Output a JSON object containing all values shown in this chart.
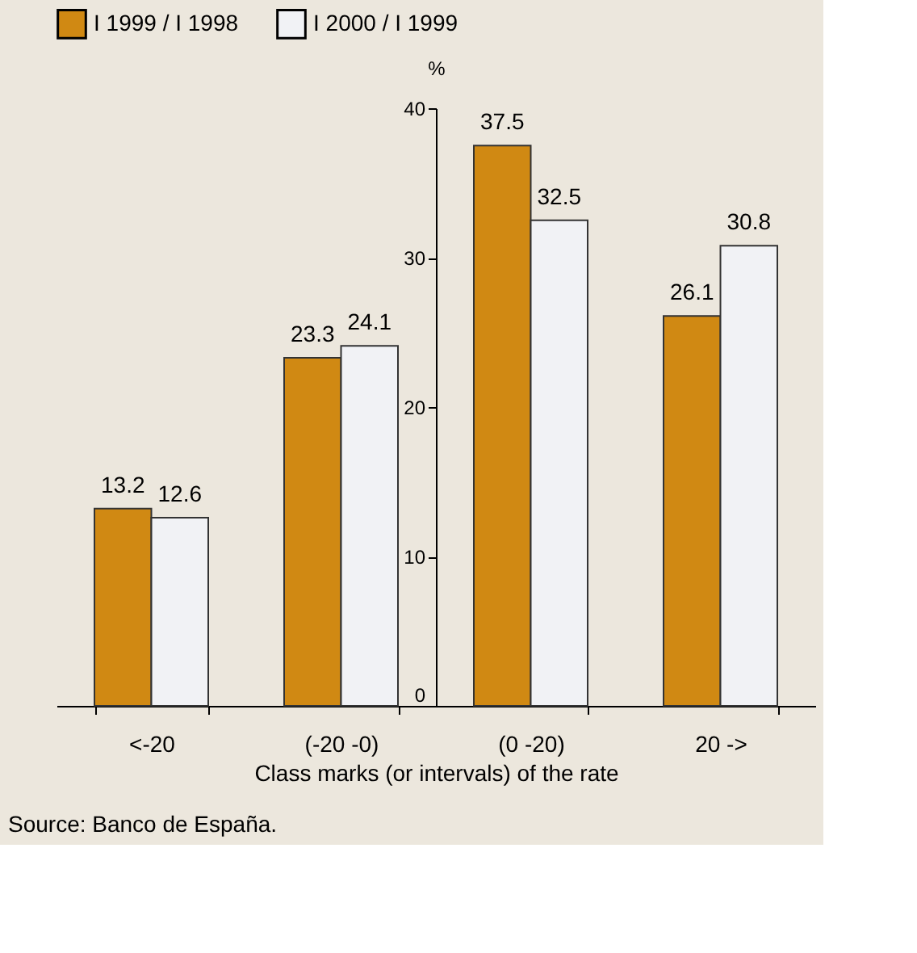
{
  "chart_data": {
    "type": "bar",
    "categories": [
      "<-20",
      "(-20 -0)",
      "(0 -20)",
      "20 ->"
    ],
    "series": [
      {
        "name": "I 1999 / I 1998",
        "color": "#d08913",
        "values": [
          13.2,
          23.3,
          37.5,
          26.1
        ]
      },
      {
        "name": "I 2000 / I 1999",
        "color": "#f1f2f5",
        "values": [
          12.6,
          24.1,
          32.5,
          30.8
        ]
      }
    ],
    "xlabel": "Class marks (or intervals) of the rate",
    "ylabel": "%",
    "ylim": [
      0,
      40
    ],
    "yticks": [
      0,
      10,
      20,
      30,
      40
    ],
    "data_labels": true,
    "legend": "top",
    "grid": false,
    "annotations": [
      "Source: Banco de España."
    ]
  }
}
